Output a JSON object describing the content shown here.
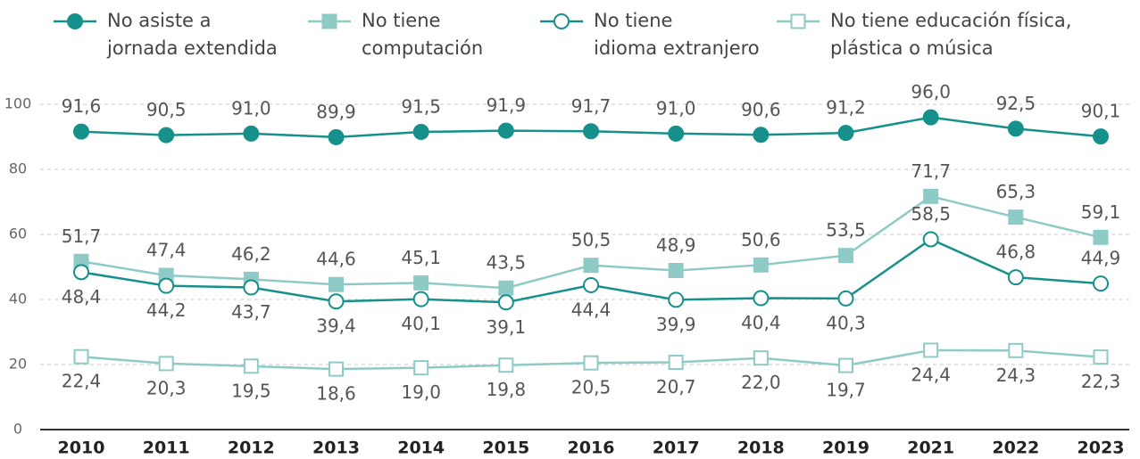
{
  "chart_data": {
    "type": "line",
    "categories": [
      "2010",
      "2011",
      "2012",
      "2013",
      "2014",
      "2015",
      "2016",
      "2017",
      "2018",
      "2019",
      "2021",
      "2022",
      "2023"
    ],
    "ylim": [
      0,
      100
    ],
    "yticks": [
      0,
      20,
      40,
      60,
      80,
      100
    ],
    "grid": true,
    "series": [
      {
        "name": "No asiste a\njornada extendida",
        "color": "#16908a",
        "marker": "circle",
        "values": [
          91.6,
          90.5,
          91.0,
          89.9,
          91.5,
          91.9,
          91.7,
          91.0,
          90.6,
          91.2,
          96.0,
          92.5,
          90.1
        ],
        "value_labels": [
          "91,6",
          "90,5",
          "91,0",
          "89,9",
          "91,5",
          "91,9",
          "91,7",
          "91,0",
          "90,6",
          "91,2",
          "96,0",
          "92,5",
          "90,1"
        ]
      },
      {
        "name": "No tiene\ncomputación",
        "color": "#8ecac6",
        "marker": "square",
        "values": [
          51.7,
          47.4,
          46.2,
          44.6,
          45.1,
          43.5,
          50.5,
          48.9,
          50.6,
          53.5,
          71.7,
          65.3,
          59.1
        ],
        "value_labels": [
          "51,7",
          "47,4",
          "46,2",
          "44,6",
          "45,1",
          "43,5",
          "50,5",
          "48,9",
          "50,6",
          "53,5",
          "71,7",
          "65,3",
          "59,1"
        ]
      },
      {
        "name": "No tiene\nidioma extranjero",
        "color": "#16908a",
        "marker": "circle-open",
        "values": [
          48.4,
          44.2,
          43.7,
          39.4,
          40.1,
          39.1,
          44.4,
          39.9,
          40.4,
          40.3,
          58.5,
          46.8,
          44.9
        ],
        "value_labels": [
          "48,4",
          "44,2",
          "43,7",
          "39,4",
          "40,1",
          "39,1",
          "44,4",
          "39,9",
          "40,4",
          "40,3",
          "58,5",
          "46,8",
          "44,9"
        ]
      },
      {
        "name": "No tiene educación física,\nplástica o música",
        "color": "#8ecac6",
        "marker": "square-open",
        "values": [
          22.4,
          20.3,
          19.5,
          18.6,
          19.0,
          19.8,
          20.5,
          20.7,
          22.0,
          19.7,
          24.4,
          24.3,
          22.3
        ],
        "value_labels": [
          "22,4",
          "20,3",
          "19,5",
          "18,6",
          "19,0",
          "19,8",
          "20,5",
          "20,7",
          "22,0",
          "19,7",
          "24,4",
          "24,3",
          "22,3"
        ]
      }
    ]
  }
}
